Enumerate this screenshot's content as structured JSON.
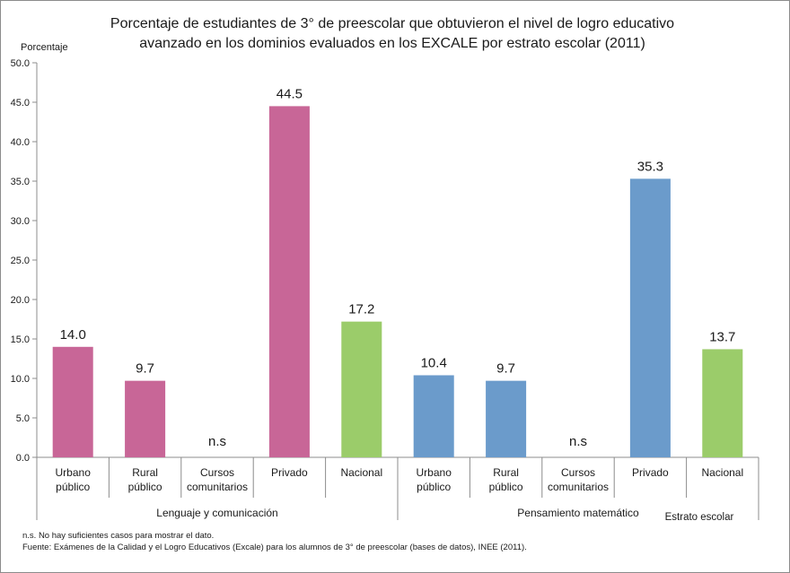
{
  "chart_data": {
    "type": "bar",
    "title_line1": "Porcentaje de estudiantes de 3° de preescolar  que obtuvieron el  nivel de logro educativo",
    "title_line2": "avanzado en los dominios evaluados en los EXCALE por  estrato escolar (2011)",
    "ylabel": "Porcentaje",
    "xlabel": "Estrato escolar",
    "ylim": [
      0,
      50
    ],
    "yticks": [
      "0.0",
      "5.0",
      "10.0",
      "15.0",
      "20.0",
      "25.0",
      "30.0",
      "35.0",
      "40.0",
      "45.0",
      "50.0"
    ],
    "groups": [
      {
        "name": "Lenguaje y comunicación",
        "categories": [
          "Urbano público",
          "Rural público",
          "Cursos comunitarios",
          "Privado",
          "Nacional"
        ],
        "values": [
          14.0,
          9.7,
          null,
          44.5,
          17.2
        ],
        "labels": [
          "14.0",
          "9.7",
          "n.s",
          "44.5",
          "17.2"
        ],
        "colors": [
          "#c86697",
          "#c86697",
          "#c86697",
          "#c86697",
          "#9bcc6a"
        ]
      },
      {
        "name": "Pensamiento matemático",
        "categories": [
          "Urbano público",
          "Rural público",
          "Cursos comunitarios",
          "Privado",
          "Nacional"
        ],
        "values": [
          10.4,
          9.7,
          null,
          35.3,
          13.7
        ],
        "labels": [
          "10.4",
          "9.7",
          "n.s",
          "35.3",
          "13.7"
        ],
        "colors": [
          "#6b9bcb",
          "#6b9bcb",
          "#6b9bcb",
          "#6b9bcb",
          "#9bcc6a"
        ]
      }
    ],
    "grid": false,
    "legend": "none"
  },
  "footnotes": {
    "note": "n.s. No hay suficientes casos para mostrar el dato.",
    "source": "Fuente: Exámenes de la Calidad y el Logro Educativos (Excale) para los alumnos de 3° de preescolar (bases de datos), INEE (2011)."
  }
}
